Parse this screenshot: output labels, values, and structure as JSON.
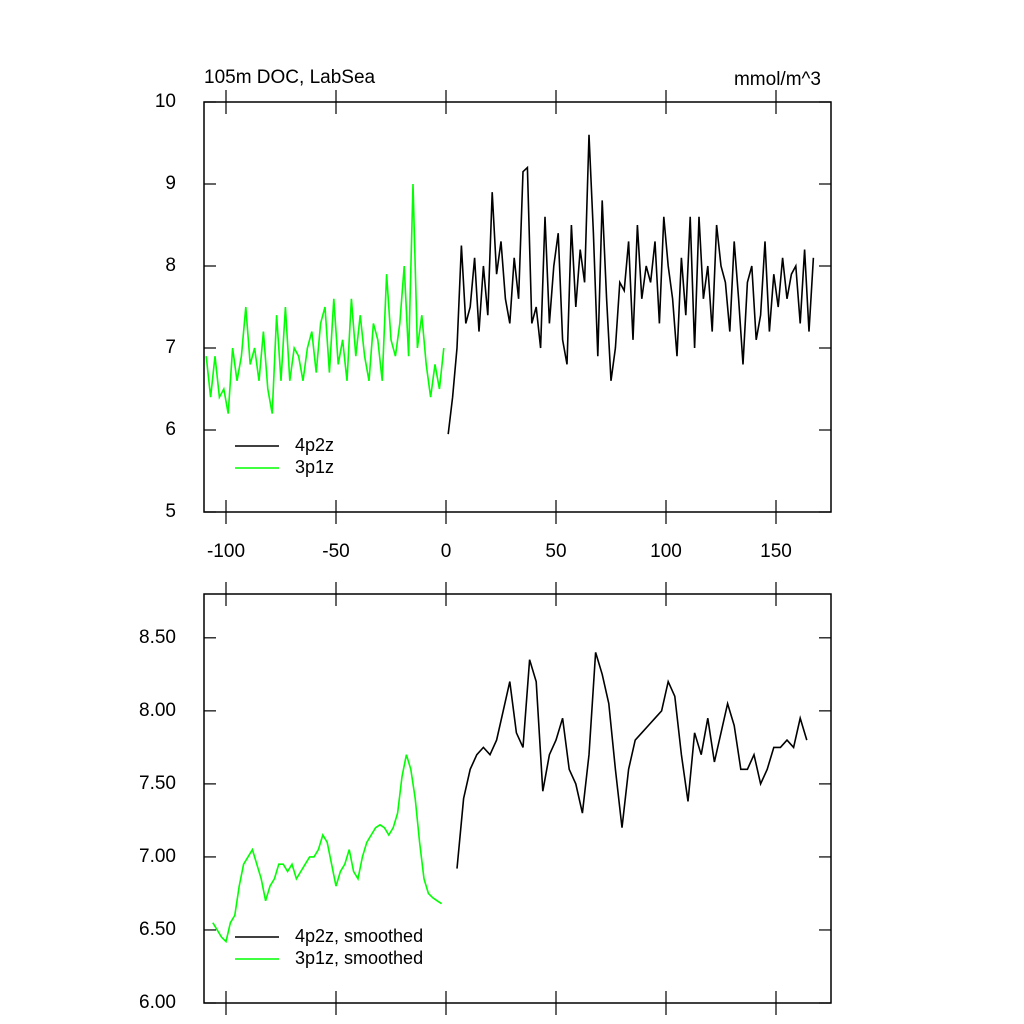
{
  "chart_data": [
    {
      "type": "line",
      "title": "105m DOC, LabSea",
      "units": "mmol/m^3",
      "xlim": [
        -110,
        175
      ],
      "xticks": [
        -100,
        -50,
        0,
        50,
        100,
        150
      ],
      "xtick_labels": true,
      "ylim": [
        5,
        10
      ],
      "yticks": [
        5,
        6,
        7,
        8,
        9,
        10
      ],
      "legend": "lower left",
      "series": [
        {
          "name": "4p2z",
          "color": "#000000",
          "x": [
            1,
            3,
            5,
            7,
            9,
            11,
            13,
            15,
            17,
            19,
            21,
            23,
            25,
            27,
            29,
            31,
            33,
            35,
            37,
            39,
            41,
            43,
            45,
            47,
            49,
            51,
            53,
            55,
            57,
            59,
            61,
            63,
            65,
            67,
            69,
            71,
            73,
            75,
            77,
            79,
            81,
            83,
            85,
            87,
            89,
            91,
            93,
            95,
            97,
            99,
            101,
            103,
            105,
            107,
            109,
            111,
            113,
            115,
            117,
            119,
            121,
            123,
            125,
            127,
            129,
            131,
            133,
            135,
            137,
            139,
            141,
            143,
            145,
            147,
            149,
            151,
            153,
            155,
            157,
            159,
            161,
            163,
            165,
            167
          ],
          "values": [
            5.95,
            6.4,
            7.0,
            8.25,
            7.3,
            7.5,
            8.1,
            7.2,
            8.0,
            7.4,
            8.9,
            7.9,
            8.3,
            7.6,
            7.3,
            8.1,
            7.6,
            9.15,
            9.2,
            7.3,
            7.5,
            7.0,
            8.6,
            7.3,
            8.0,
            8.4,
            7.1,
            6.8,
            8.5,
            7.5,
            8.2,
            7.8,
            9.6,
            8.4,
            6.9,
            8.8,
            7.6,
            6.6,
            7.0,
            7.8,
            7.7,
            8.3,
            7.1,
            8.5,
            7.6,
            8.0,
            7.8,
            8.3,
            7.3,
            8.6,
            8.0,
            7.6,
            6.9,
            8.1,
            7.4,
            8.6,
            7.0,
            8.6,
            7.6,
            8.0,
            7.2,
            8.5,
            8.0,
            7.8,
            7.2,
            8.3,
            7.6,
            6.8,
            7.8,
            8.0,
            7.1,
            7.4,
            8.3,
            7.2,
            7.9,
            7.5,
            8.1,
            7.6,
            7.9,
            8.0,
            7.3,
            8.2,
            7.2,
            8.1
          ]
        },
        {
          "name": "3p1z",
          "color": "#00ff00",
          "x": [
            -109,
            -107,
            -105,
            -103,
            -101,
            -99,
            -97,
            -95,
            -93,
            -91,
            -89,
            -87,
            -85,
            -83,
            -81,
            -79,
            -77,
            -75,
            -73,
            -71,
            -69,
            -67,
            -65,
            -63,
            -61,
            -59,
            -57,
            -55,
            -53,
            -51,
            -49,
            -47,
            -45,
            -43,
            -41,
            -39,
            -37,
            -35,
            -33,
            -31,
            -29,
            -27,
            -25,
            -23,
            -21,
            -19,
            -17,
            -15,
            -13,
            -11,
            -9,
            -7,
            -5,
            -3,
            -1
          ],
          "values": [
            6.9,
            6.4,
            6.9,
            6.4,
            6.5,
            6.2,
            7.0,
            6.6,
            6.9,
            7.5,
            6.8,
            7.0,
            6.6,
            7.2,
            6.5,
            6.2,
            7.4,
            6.6,
            7.5,
            6.6,
            7.0,
            6.9,
            6.6,
            7.0,
            7.2,
            6.7,
            7.3,
            7.5,
            6.7,
            7.6,
            6.8,
            7.1,
            6.6,
            7.6,
            6.9,
            7.4,
            6.9,
            6.6,
            7.3,
            7.1,
            6.6,
            7.9,
            7.1,
            6.9,
            7.3,
            8.0,
            6.9,
            9.0,
            7.0,
            7.4,
            6.8,
            6.4,
            6.8,
            6.5,
            7.0
          ]
        }
      ]
    },
    {
      "type": "line",
      "xlim": [
        -110,
        175
      ],
      "xticks": [
        -100,
        -50,
        0,
        50,
        100,
        150
      ],
      "xtick_labels": false,
      "ylim": [
        6,
        8.8
      ],
      "yticks": [
        {
          "value": 6,
          "label": "6.00"
        },
        {
          "value": 6.5,
          "label": "6.50"
        },
        {
          "value": 7,
          "label": "7.00"
        },
        {
          "value": 7.5,
          "label": "7.50"
        },
        {
          "value": 8,
          "label": "8.00"
        },
        {
          "value": 8.5,
          "label": "8.50"
        }
      ],
      "legend": "lower left",
      "series": [
        {
          "name": "4p2z, smoothed",
          "color": "#000000",
          "x": [
            5,
            8,
            11,
            14,
            17,
            20,
            23,
            26,
            29,
            32,
            35,
            38,
            41,
            44,
            47,
            50,
            53,
            56,
            59,
            62,
            65,
            68,
            71,
            74,
            77,
            80,
            83,
            86,
            89,
            92,
            95,
            98,
            101,
            104,
            107,
            110,
            113,
            116,
            119,
            122,
            125,
            128,
            131,
            134,
            137,
            140,
            143,
            146,
            149,
            152,
            155,
            158,
            161,
            164
          ],
          "values": [
            6.92,
            7.4,
            7.6,
            7.7,
            7.75,
            7.7,
            7.8,
            8.0,
            8.2,
            7.85,
            7.75,
            8.35,
            8.2,
            7.45,
            7.7,
            7.8,
            7.95,
            7.6,
            7.5,
            7.3,
            7.7,
            8.4,
            8.25,
            8.05,
            7.6,
            7.2,
            7.6,
            7.8,
            7.85,
            7.9,
            7.95,
            8.0,
            8.2,
            8.1,
            7.7,
            7.38,
            7.85,
            7.7,
            7.95,
            7.65,
            7.85,
            8.05,
            7.9,
            7.6,
            7.6,
            7.7,
            7.5,
            7.6,
            7.75,
            7.75,
            7.8,
            7.75,
            7.95,
            7.8
          ]
        },
        {
          "name": "3p1z, smoothed",
          "color": "#00ff00",
          "x": [
            -106,
            -104,
            -102,
            -100,
            -98,
            -96,
            -94,
            -92,
            -90,
            -88,
            -86,
            -84,
            -82,
            -80,
            -78,
            -76,
            -74,
            -72,
            -70,
            -68,
            -66,
            -64,
            -62,
            -60,
            -58,
            -56,
            -54,
            -52,
            -50,
            -48,
            -46,
            -44,
            -42,
            -40,
            -38,
            -36,
            -34,
            -32,
            -30,
            -28,
            -26,
            -24,
            -22,
            -20,
            -18,
            -16,
            -14,
            -12,
            -10,
            -8,
            -6,
            -4,
            -2
          ],
          "values": [
            6.55,
            6.5,
            6.45,
            6.42,
            6.55,
            6.6,
            6.8,
            6.95,
            7.0,
            7.05,
            6.95,
            6.85,
            6.7,
            6.8,
            6.85,
            6.95,
            6.95,
            6.9,
            6.95,
            6.85,
            6.9,
            6.95,
            7.0,
            7.0,
            7.05,
            7.15,
            7.1,
            6.95,
            6.8,
            6.9,
            6.95,
            7.05,
            6.9,
            6.85,
            7.0,
            7.1,
            7.15,
            7.2,
            7.22,
            7.2,
            7.15,
            7.2,
            7.3,
            7.55,
            7.7,
            7.6,
            7.4,
            7.1,
            6.85,
            6.75,
            6.72,
            6.7,
            6.68
          ]
        }
      ]
    }
  ]
}
